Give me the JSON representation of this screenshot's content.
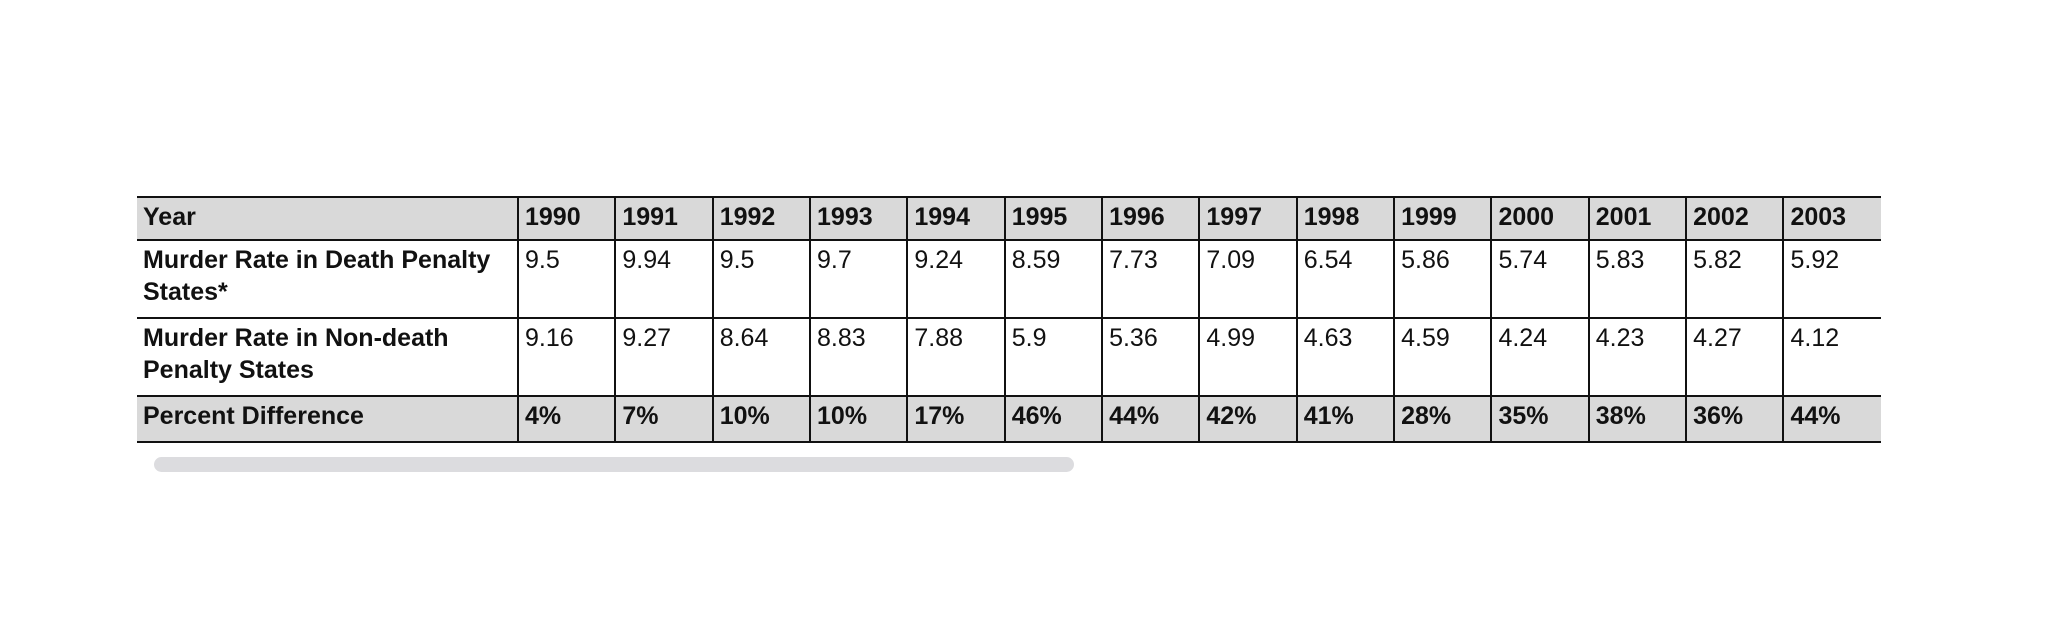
{
  "table": {
    "header": [
      "Year",
      "1990",
      "1991",
      "1992",
      "1993",
      "1994",
      "1995",
      "1996",
      "1997",
      "1998",
      "1999",
      "2000",
      "2001",
      "2002",
      "2003"
    ],
    "rows": [
      [
        "Murder Rate in Death Penalty States*",
        "9.5",
        "9.94",
        "9.5",
        "9.7",
        "9.24",
        "8.59",
        "7.73",
        "7.09",
        "6.54",
        "5.86",
        "5.74",
        "5.83",
        "5.82",
        "5.92"
      ],
      [
        "Murder Rate in Non-death Penalty States",
        "9.16",
        "9.27",
        "8.64",
        "8.83",
        "7.88",
        "5.9",
        "5.36",
        "4.99",
        "4.63",
        "4.59",
        "4.24",
        "4.23",
        "4.27",
        "4.12"
      ],
      [
        "Percent Difference",
        "4%",
        "7%",
        "10%",
        "10%",
        "17%",
        "46%",
        "44%",
        "42%",
        "41%",
        "28%",
        "35%",
        "38%",
        "36%",
        "44%"
      ]
    ]
  }
}
